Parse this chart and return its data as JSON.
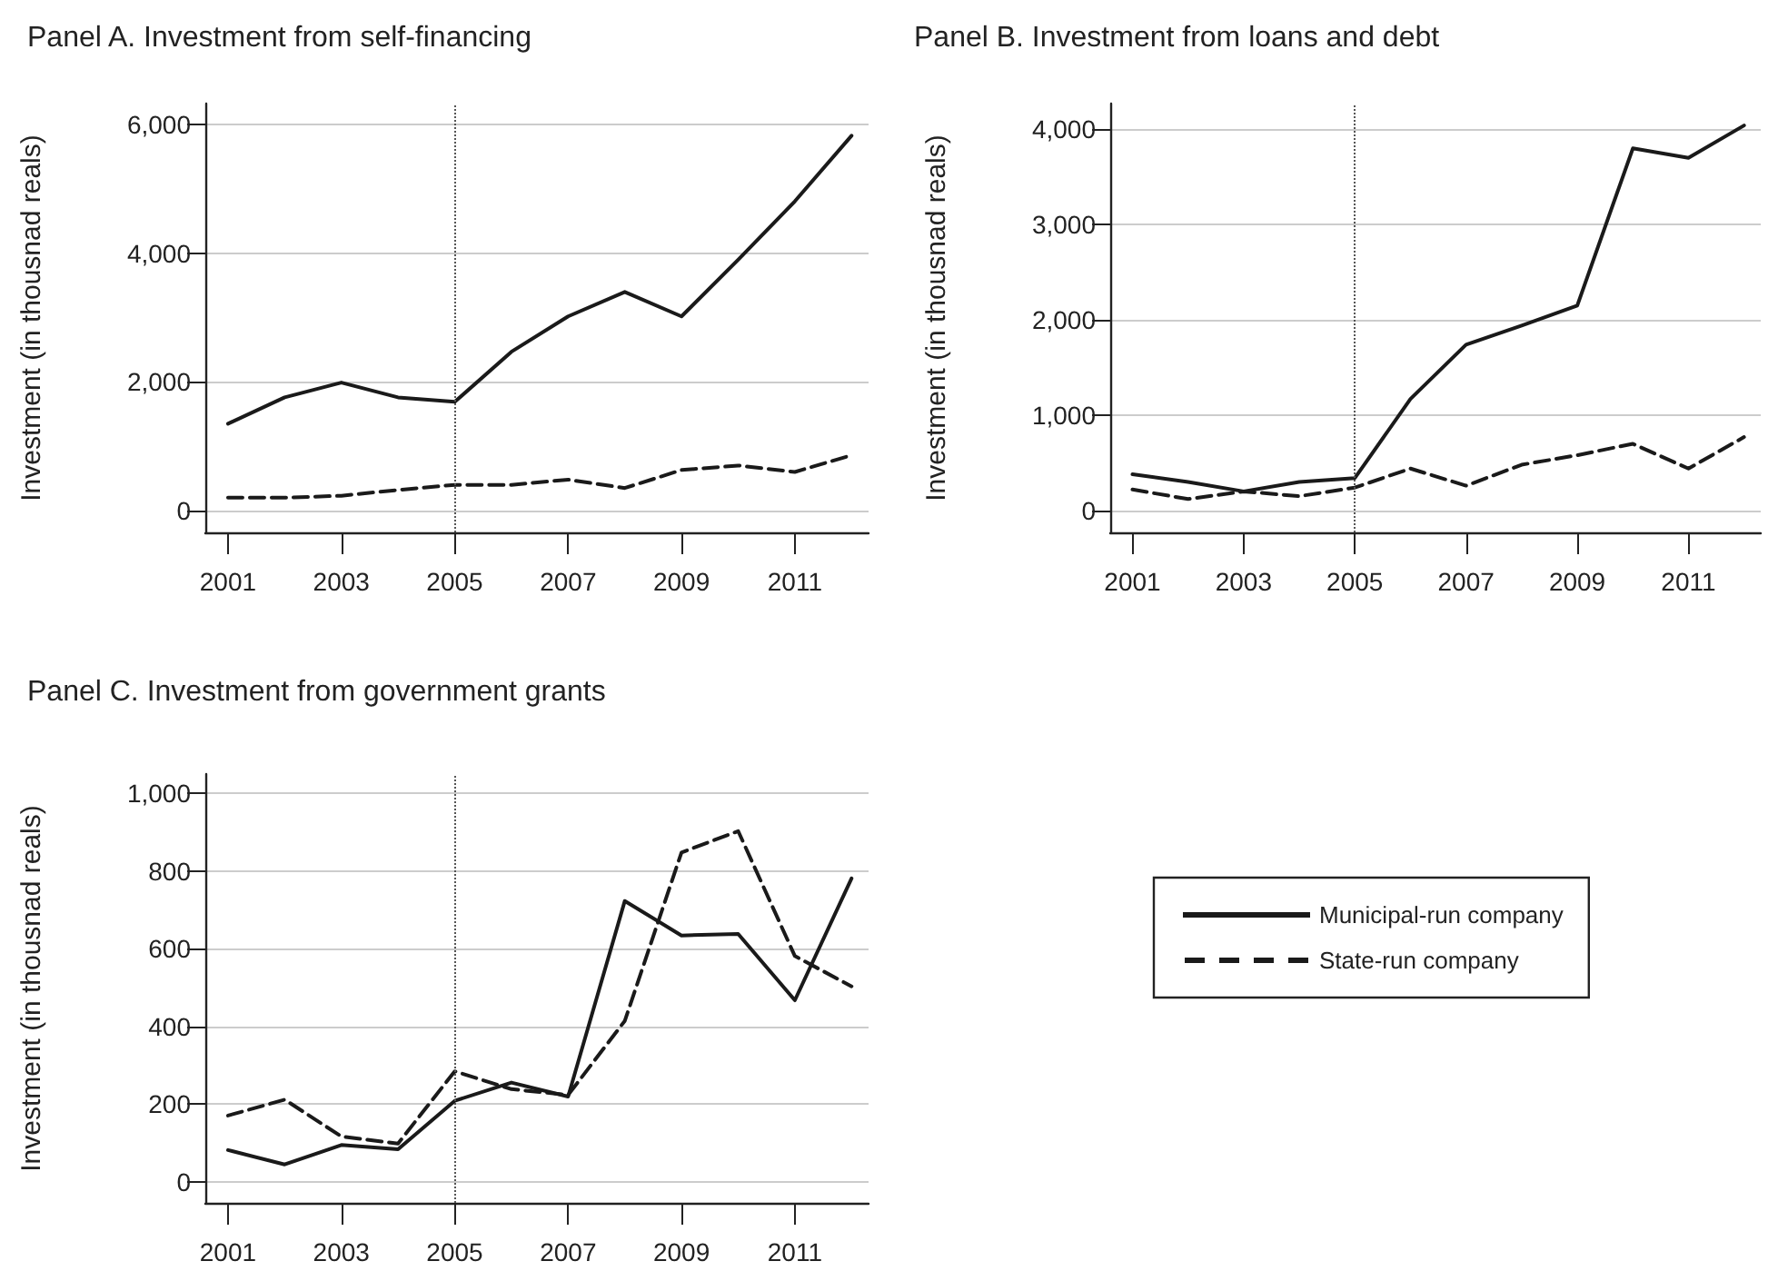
{
  "chart_data": [
    {
      "type": "line",
      "title": "Panel A. Investment from self-financing",
      "ylabel": "Investment (in thousnad reals)",
      "x": [
        2001,
        2002,
        2003,
        2004,
        2005,
        2006,
        2007,
        2008,
        2009,
        2010,
        2011,
        2012
      ],
      "xlim": [
        2000.6,
        2012.3
      ],
      "xticks": [
        2001,
        2003,
        2005,
        2007,
        2009,
        2011
      ],
      "ylim": [
        -340,
        6330
      ],
      "yticks": [
        0,
        {
          "value": 2000,
          "label": "2,000"
        },
        {
          "value": 4000,
          "label": "4,000"
        },
        {
          "value": 6000,
          "label": "6,000"
        }
      ],
      "grid": "y",
      "legend": false,
      "marker": "none",
      "series": [
        {
          "color": "#1a1a1a",
          "line_style": "solid",
          "values": [
            1350,
            1760,
            1990,
            1760,
            1690,
            2470,
            3020,
            3400,
            3020,
            3900,
            4810,
            5830
          ]
        },
        {
          "color": "#1a1a1a",
          "line_style": "dashed",
          "values": [
            200,
            200,
            230,
            320,
            400,
            400,
            480,
            350,
            630,
            700,
            600,
            860
          ]
        }
      ],
      "ref_lines": [
        {
          "axis": "x",
          "value": 2005,
          "color": "#555555",
          "line_style": "dotted"
        }
      ]
    },
    {
      "type": "line",
      "title": "Panel B. Investment from loans and debt",
      "ylabel": "Investment (in thousnad reals)",
      "x": [
        2001,
        2002,
        2003,
        2004,
        2005,
        2006,
        2007,
        2008,
        2009,
        2010,
        2011,
        2012
      ],
      "xlim": [
        2000.6,
        2012.3
      ],
      "xticks": [
        2001,
        2003,
        2005,
        2007,
        2009,
        2011
      ],
      "ylim": [
        -230,
        4270
      ],
      "yticks": [
        0,
        {
          "value": 1000,
          "label": "1,000"
        },
        {
          "value": 2000,
          "label": "2,000"
        },
        {
          "value": 3000,
          "label": "3,000"
        },
        {
          "value": 4000,
          "label": "4,000"
        }
      ],
      "grid": "y",
      "legend": false,
      "marker": "none",
      "series": [
        {
          "color": "#1a1a1a",
          "line_style": "solid",
          "values": [
            380,
            300,
            200,
            300,
            340,
            1170,
            1740,
            1940,
            2150,
            3800,
            3700,
            4040
          ]
        },
        {
          "color": "#1a1a1a",
          "line_style": "dashed",
          "values": [
            220,
            120,
            200,
            150,
            240,
            440,
            260,
            480,
            580,
            700,
            440,
            770
          ]
        }
      ],
      "ref_lines": [
        {
          "axis": "x",
          "value": 2005,
          "color": "#555555",
          "line_style": "dotted"
        }
      ]
    },
    {
      "type": "line",
      "title": "Panel C. Investment from government grants",
      "ylabel": "Investment (in thousnad reals)",
      "x": [
        2001,
        2002,
        2003,
        2004,
        2005,
        2006,
        2007,
        2008,
        2009,
        2010,
        2011,
        2012
      ],
      "xlim": [
        2000.6,
        2012.3
      ],
      "xticks": [
        2001,
        2003,
        2005,
        2007,
        2009,
        2011
      ],
      "ylim": [
        -55,
        1050
      ],
      "yticks": [
        0,
        200,
        400,
        600,
        800,
        {
          "value": 1000,
          "label": "1,000"
        }
      ],
      "grid": "y",
      "legend": "right",
      "marker": "none",
      "series": [
        {
          "name": "Municipal-run company",
          "color": "#1a1a1a",
          "line_style": "solid",
          "values": [
            81,
            44,
            94,
            83,
            208,
            255,
            219,
            723,
            634,
            638,
            467,
            781
          ]
        },
        {
          "name": "State-run company",
          "color": "#1a1a1a",
          "line_style": "dashed",
          "values": [
            170,
            211,
            116,
            98,
            284,
            238,
            223,
            414,
            848,
            903,
            581,
            503
          ]
        }
      ],
      "ref_lines": [
        {
          "axis": "x",
          "value": 2005,
          "color": "#555555",
          "line_style": "dotted"
        }
      ]
    }
  ]
}
